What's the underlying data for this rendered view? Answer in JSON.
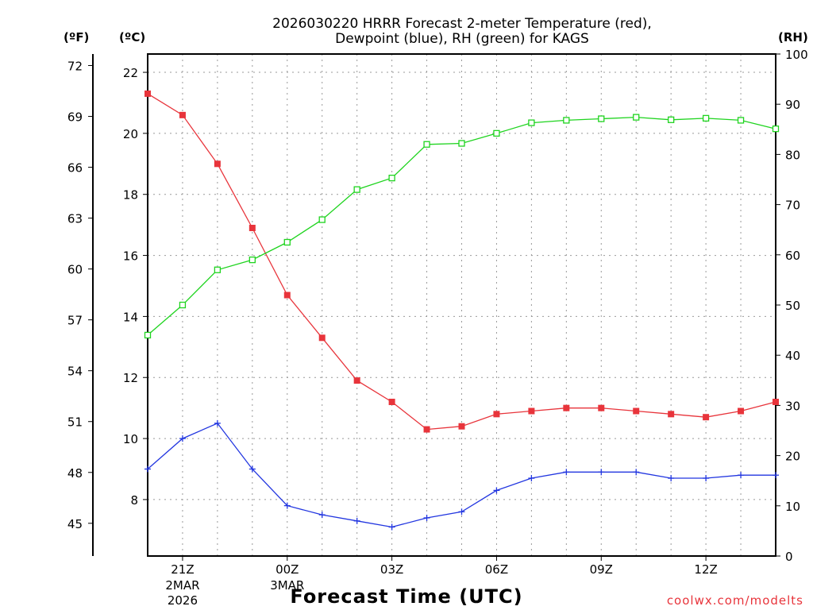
{
  "chart_data": {
    "type": "line",
    "title_line1": "2026030220 HRRR Forecast 2-meter Temperature (red),",
    "title_line2": "Dewpoint (blue), RH (green) for KAGS",
    "xlabel": "Forecast Time (UTC)",
    "credit": "coolwx.com/modelts",
    "units": {
      "fahrenheit": "(ºF)",
      "celsius": "(ºC)",
      "rh": "(RH)"
    },
    "forecast_hours": [
      0,
      1,
      2,
      3,
      4,
      5,
      6,
      7,
      8,
      9,
      10,
      11,
      12,
      13,
      14,
      15,
      16,
      17,
      18
    ],
    "x_range": [
      0,
      18
    ],
    "x_ticks": [
      {
        "hour": 1,
        "label": "21Z",
        "sub1": "2MAR",
        "sub2": "2026"
      },
      {
        "hour": 4,
        "label": "00Z",
        "sub1": "3MAR",
        "sub2": ""
      },
      {
        "hour": 7,
        "label": "03Z",
        "sub1": "",
        "sub2": ""
      },
      {
        "hour": 10,
        "label": "06Z",
        "sub1": "",
        "sub2": ""
      },
      {
        "hour": 13,
        "label": "09Z",
        "sub1": "",
        "sub2": ""
      },
      {
        "hour": 16,
        "label": "12Z",
        "sub1": "",
        "sub2": ""
      }
    ],
    "celsius_axis": {
      "range": [
        6.15,
        22.6
      ],
      "ticks": [
        8,
        10,
        12,
        14,
        16,
        18,
        20,
        22
      ]
    },
    "fahrenheit_axis": {
      "ticks": [
        45,
        48,
        51,
        54,
        57,
        60,
        63,
        66,
        69,
        72
      ]
    },
    "rh_axis": {
      "range": [
        0,
        100
      ],
      "ticks": [
        0,
        10,
        20,
        30,
        40,
        50,
        60,
        70,
        80,
        90,
        100
      ]
    },
    "series": [
      {
        "name": "Temperature",
        "axis": "celsius",
        "color": "#e8343b",
        "marker": "filled-square",
        "values": [
          21.3,
          20.6,
          19.0,
          16.9,
          14.7,
          13.3,
          11.9,
          11.2,
          10.3,
          10.4,
          10.8,
          10.9,
          11.0,
          11.0,
          10.9,
          10.8,
          10.7,
          10.9,
          11.2
        ]
      },
      {
        "name": "Dewpoint",
        "axis": "celsius",
        "color": "#2236e0",
        "marker": "plus",
        "values": [
          9.0,
          10.0,
          10.5,
          9.0,
          7.8,
          7.5,
          7.3,
          7.1,
          7.4,
          7.6,
          8.3,
          8.7,
          8.9,
          8.9,
          8.9,
          8.7,
          8.7,
          8.8,
          8.8
        ]
      },
      {
        "name": "RH",
        "axis": "rh",
        "color": "#1fd41f",
        "marker": "open-square",
        "values": [
          44,
          50,
          57,
          59,
          62.5,
          67,
          73,
          75.3,
          82,
          82.2,
          84.2,
          86.3,
          86.8,
          87.1,
          87.4,
          86.9,
          87.2,
          86.8,
          85.1
        ]
      }
    ]
  }
}
